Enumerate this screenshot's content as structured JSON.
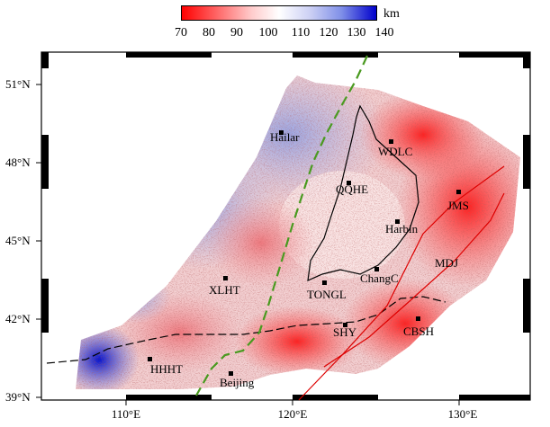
{
  "colorbar": {
    "unit": "km",
    "ticks": [
      "70",
      "80",
      "90",
      "100",
      "110",
      "120",
      "130",
      "140"
    ],
    "colors": [
      "#ff0000",
      "#ffffff",
      "#0000cc"
    ]
  },
  "axes": {
    "lat_labels": [
      "51°N",
      "48°N",
      "45°N",
      "42°N",
      "39°N"
    ],
    "lon_labels": [
      "110°E",
      "120°E",
      "130°E"
    ]
  },
  "cities": [
    "Hailar",
    "WDLC",
    "QQHE",
    "Harbin",
    "JMS",
    "MDJ",
    "ChangC",
    "TONGL",
    "XLHT",
    "SHY",
    "CBSH",
    "HHHT",
    "Beijing"
  ]
}
